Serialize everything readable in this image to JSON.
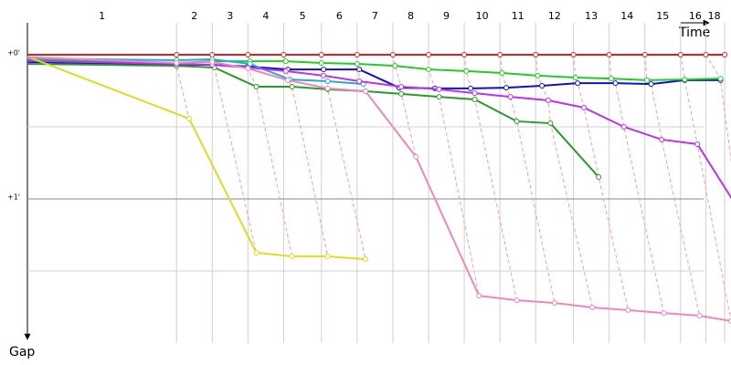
{
  "chart_data": {
    "type": "line",
    "x_label": "Time",
    "y_label": "Gap",
    "xlim": [
      0,
      335
    ],
    "ylim": [
      0,
      120
    ],
    "xticks": [
      {
        "value": 35.5,
        "label": "1"
      },
      {
        "value": 79.5,
        "label": "2"
      },
      {
        "value": 96.5,
        "label": "3"
      },
      {
        "value": 113.5,
        "label": "4"
      },
      {
        "value": 131,
        "label": "5"
      },
      {
        "value": 148.5,
        "label": "6"
      },
      {
        "value": 165.5,
        "label": "7"
      },
      {
        "value": 182.5,
        "label": "8"
      },
      {
        "value": 199.5,
        "label": "9"
      },
      {
        "value": 216.5,
        "label": "10"
      },
      {
        "value": 233.5,
        "label": "11"
      },
      {
        "value": 251,
        "label": "12"
      },
      {
        "value": 268.5,
        "label": "13"
      },
      {
        "value": 285.5,
        "label": "14"
      },
      {
        "value": 302.5,
        "label": "15"
      },
      {
        "value": 318,
        "label": "16"
      },
      {
        "value": 327,
        "label": "18"
      }
    ],
    "yticks": [
      {
        "value": 0,
        "label": "+0'"
      },
      {
        "value": 60,
        "label": "+1'"
      }
    ],
    "minor_yticks": [
      30,
      90
    ],
    "grid": true,
    "lap_line_color": "#ff9a9a",
    "series": [
      {
        "color": "#e02020",
        "x": [
          0,
          71,
          88,
          105,
          122,
          140,
          157,
          174,
          191,
          208,
          225,
          242,
          260,
          277,
          294,
          311,
          323,
          332
        ],
        "y": [
          0,
          0,
          0,
          0,
          0,
          0,
          0,
          0,
          0,
          0,
          0,
          0,
          0,
          0,
          0,
          0,
          0,
          0
        ]
      },
      {
        "color": "#1010cc",
        "x": [
          0,
          71,
          88,
          105,
          124,
          141,
          158,
          177,
          194,
          211,
          228,
          245,
          262,
          280,
          297,
          313,
          330
        ],
        "y": [
          3,
          4.2,
          4.2,
          4.9,
          6.1,
          6.1,
          6.1,
          13.7,
          14,
          14,
          13.7,
          12.9,
          11.8,
          11.8,
          12.2,
          10.6,
          10.6
        ]
      },
      {
        "color": "#22cc22",
        "x": [
          0,
          71,
          88,
          106,
          123,
          140,
          157,
          175,
          191,
          209,
          226,
          243,
          261,
          278,
          295,
          313,
          330
        ],
        "y": [
          2,
          3.4,
          2.7,
          2.7,
          2.7,
          3.4,
          3.8,
          4.6,
          6.1,
          6.8,
          7.6,
          8.7,
          9.5,
          9.9,
          10.6,
          10.3,
          9.9
        ]
      },
      {
        "color": "#2a9a2a",
        "x": [
          0,
          71,
          89,
          109,
          126,
          143,
          161,
          178,
          196,
          213,
          233,
          249,
          272
        ],
        "y": [
          3.8,
          4.6,
          5.3,
          13.3,
          13.3,
          14.4,
          15.2,
          16.3,
          17.5,
          18.6,
          27.7,
          28.5,
          50.9
        ]
      },
      {
        "color": "#22aadd",
        "x": [
          0,
          71,
          88,
          106,
          125,
          143,
          160
        ],
        "y": [
          1.5,
          2.3,
          1.9,
          3.8,
          10.3,
          11,
          12.2
        ]
      },
      {
        "color": "#bb33ee",
        "x": [
          0,
          71,
          88,
          105,
          123,
          141,
          158,
          178,
          196,
          213,
          230,
          248,
          265,
          284,
          302,
          319,
          338
        ],
        "y": [
          2.5,
          3.8,
          4.2,
          5.3,
          6.8,
          8.7,
          11,
          13.3,
          14.4,
          16,
          17.5,
          19,
          22,
          30,
          35.3,
          37.2,
          63.5
        ]
      },
      {
        "color": "#dddd22",
        "x": [
          0,
          77,
          109,
          126,
          143,
          161
        ],
        "y": [
          0.8,
          26.6,
          82.4,
          83.9,
          83.9,
          85.1
        ]
      },
      {
        "color": "#ee88bb",
        "x": [
          0,
          71,
          88,
          105,
          124,
          143,
          161,
          185,
          215,
          233,
          251,
          269,
          286,
          303,
          320,
          335
        ],
        "y": [
          1,
          3.4,
          3,
          5.7,
          10.6,
          14,
          15.2,
          42.5,
          100.3,
          102.2,
          103.3,
          105.2,
          106.3,
          107.5,
          108.6,
          110.8
        ]
      }
    ]
  }
}
